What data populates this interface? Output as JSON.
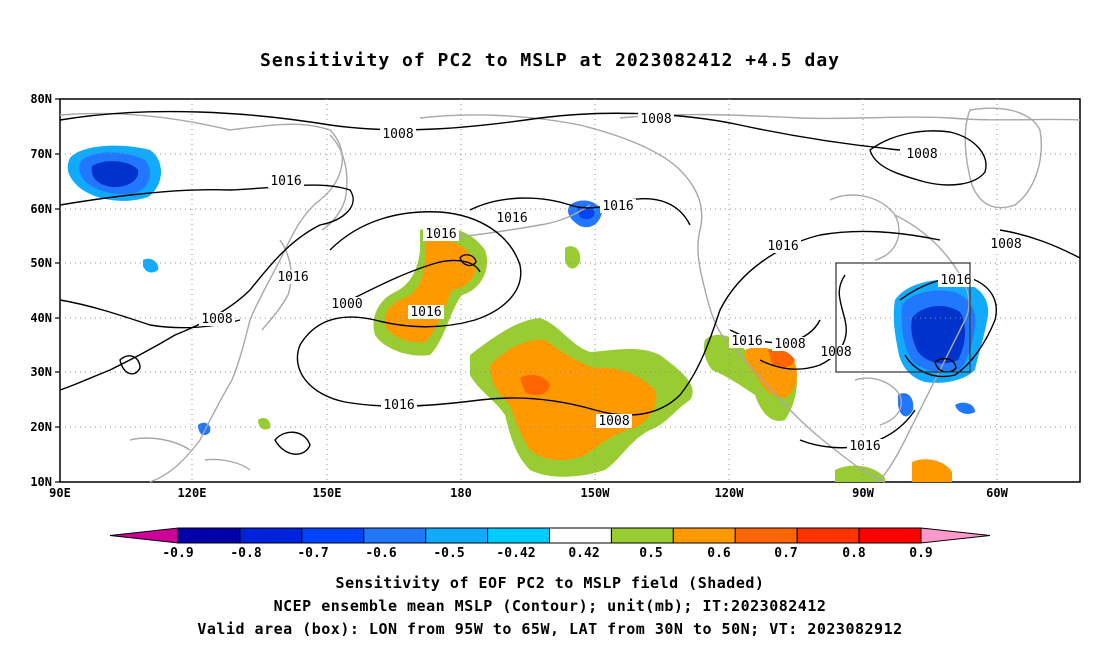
{
  "title": "Sensitivity of PC2 to MSLP at 2023082412 +4.5 day",
  "map": {
    "lat_labels": [
      "80N",
      "70N",
      "60N",
      "50N",
      "40N",
      "30N",
      "20N",
      "10N"
    ],
    "lon_labels": [
      "90E",
      "120E",
      "150E",
      "180",
      "150W",
      "120W",
      "90W",
      "60W"
    ],
    "valid_box": {
      "lon_min": "95W",
      "lon_max": "65W",
      "lat_min": "30N",
      "lat_max": "50N"
    },
    "contour_labels": [
      "1008",
      "1008",
      "1016",
      "1016",
      "1016",
      "1016",
      "1008",
      "1008",
      "1016",
      "1016",
      "1016",
      "1000",
      "1016",
      "1008",
      "1016",
      "1008",
      "1008",
      "1016",
      "1008",
      "1016",
      "1008"
    ],
    "colors": {
      "coast": "#a8a8a8",
      "grid": "#909090",
      "contour": "#000000",
      "green": "#99cc33",
      "orange": "#ff9900",
      "dark_orange": "#ff6600",
      "blue": "#0044ee",
      "mid_blue": "#2277ff",
      "light_blue": "#11aaff"
    }
  },
  "colorbar": {
    "labels": [
      "-0.9",
      "-0.8",
      "-0.7",
      "-0.6",
      "-0.5",
      "-0.42",
      "0.42",
      "0.5",
      "0.6",
      "0.7",
      "0.8",
      "0.9"
    ],
    "colors": [
      "#cc0099",
      "#0000aa",
      "#0022dd",
      "#0044ff",
      "#2277ff",
      "#11aaff",
      "#00ccff",
      "#ffffff",
      "#99cc33",
      "#ff9900",
      "#ff6600",
      "#ff3300",
      "#ff0000",
      "#ff99cc"
    ]
  },
  "captions": {
    "line1": "Sensitivity of EOF PC2 to MSLP field (Shaded)",
    "line2": "NCEP ensemble mean MSLP (Contour); unit(mb); IT:2023082412",
    "line3": "Valid area (box): LON from 95W to 65W, LAT from 30N to 50N; VT: 2023082912"
  }
}
